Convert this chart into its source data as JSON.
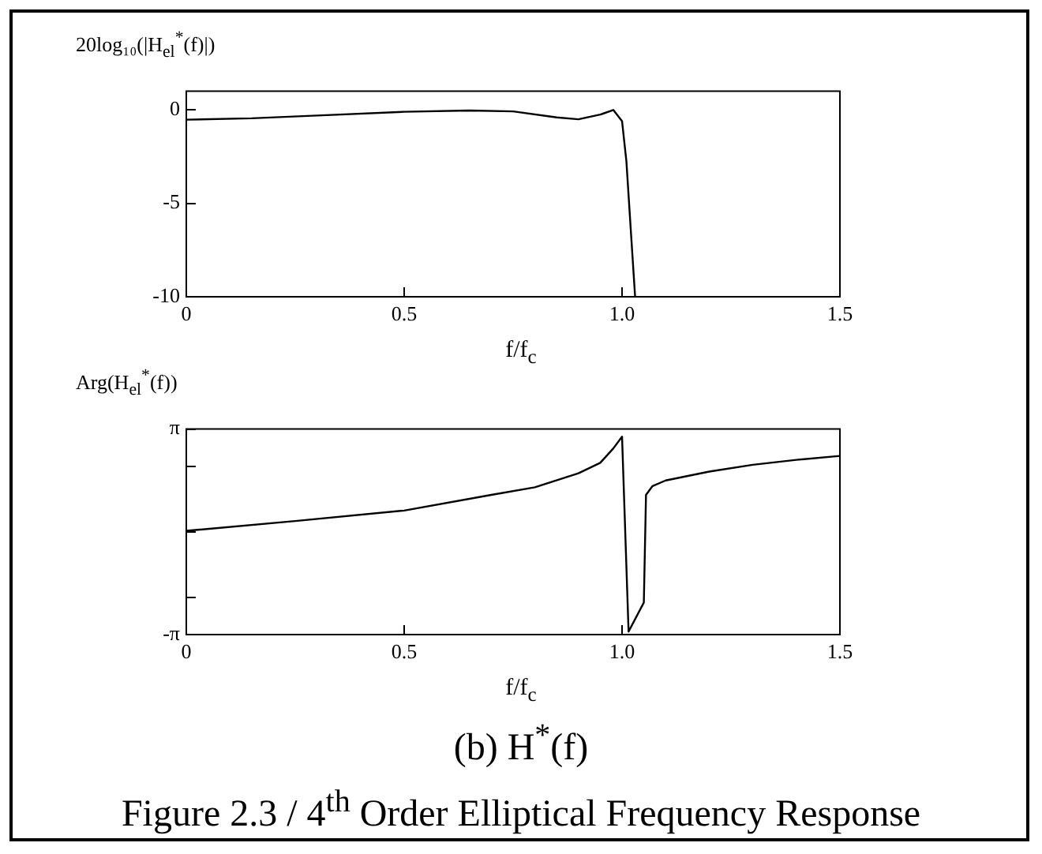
{
  "chart_data": [
    {
      "type": "line",
      "ylabel": "20log₁₀(|H$_{el}$$^{*}$(f)|)",
      "xlabel": "f/f$_{c}$",
      "xlim": [
        0,
        1.5
      ],
      "xticks": [
        0,
        0.5,
        {
          "value": 1,
          "label": "1.0"
        },
        1.5
      ],
      "ylim": [
        -10,
        1
      ],
      "yticks": [
        -10,
        -5,
        0
      ],
      "grid": false,
      "legend": false,
      "marker": "none",
      "line_style": "solid",
      "series": [
        {
          "color": "#000000",
          "x": [
            0,
            0.15,
            0.3,
            0.5,
            0.65,
            0.75,
            0.85,
            0.9,
            0.95,
            0.98,
            1.0,
            1.01,
            1.02,
            1.03
          ],
          "values": [
            -0.52,
            -0.45,
            -0.3,
            -0.1,
            -0.03,
            -0.08,
            -0.4,
            -0.5,
            -0.25,
            0,
            -0.6,
            -2.75,
            -6.4,
            -10
          ]
        }
      ]
    },
    {
      "type": "line",
      "ylabel": "Arg(H$_{el}$$^{*}$(f))",
      "xlabel": "f/f$_{c}$",
      "xlim": [
        0,
        1.5
      ],
      "xticks": [
        0,
        0.5,
        {
          "value": 1,
          "label": "1.0"
        },
        1.5
      ],
      "ylim": [
        -3.1416,
        3.1416
      ],
      "yticks": [
        {
          "value": -3.1416,
          "label": "-π"
        },
        {
          "value": -2,
          "label": null
        },
        {
          "value": 0,
          "label": null
        },
        {
          "value": 2,
          "label": null
        },
        {
          "value": 3.1416,
          "label": "π"
        }
      ],
      "grid": false,
      "legend": false,
      "marker": "none",
      "line_style": "solid",
      "annotations": [
        "(b) H$^{*}$(f)",
        "Figure 2.3 / 4$^{th}$ Order Elliptical Frequency Response"
      ],
      "series": [
        {
          "color": "#000000",
          "x": [
            0,
            0.25,
            0.5,
            0.7,
            0.8,
            0.9,
            0.95,
            0.98,
            1.0,
            1.015,
            1.05,
            1.055,
            1.07,
            1.1,
            1.2,
            1.3,
            1.4,
            1.5
          ],
          "values": [
            0.03,
            0.33,
            0.65,
            1.13,
            1.36,
            1.79,
            2.11,
            2.55,
            2.91,
            -3.05,
            -2.16,
            1.13,
            1.4,
            1.57,
            1.84,
            2.05,
            2.2,
            2.32
          ]
        }
      ]
    }
  ]
}
